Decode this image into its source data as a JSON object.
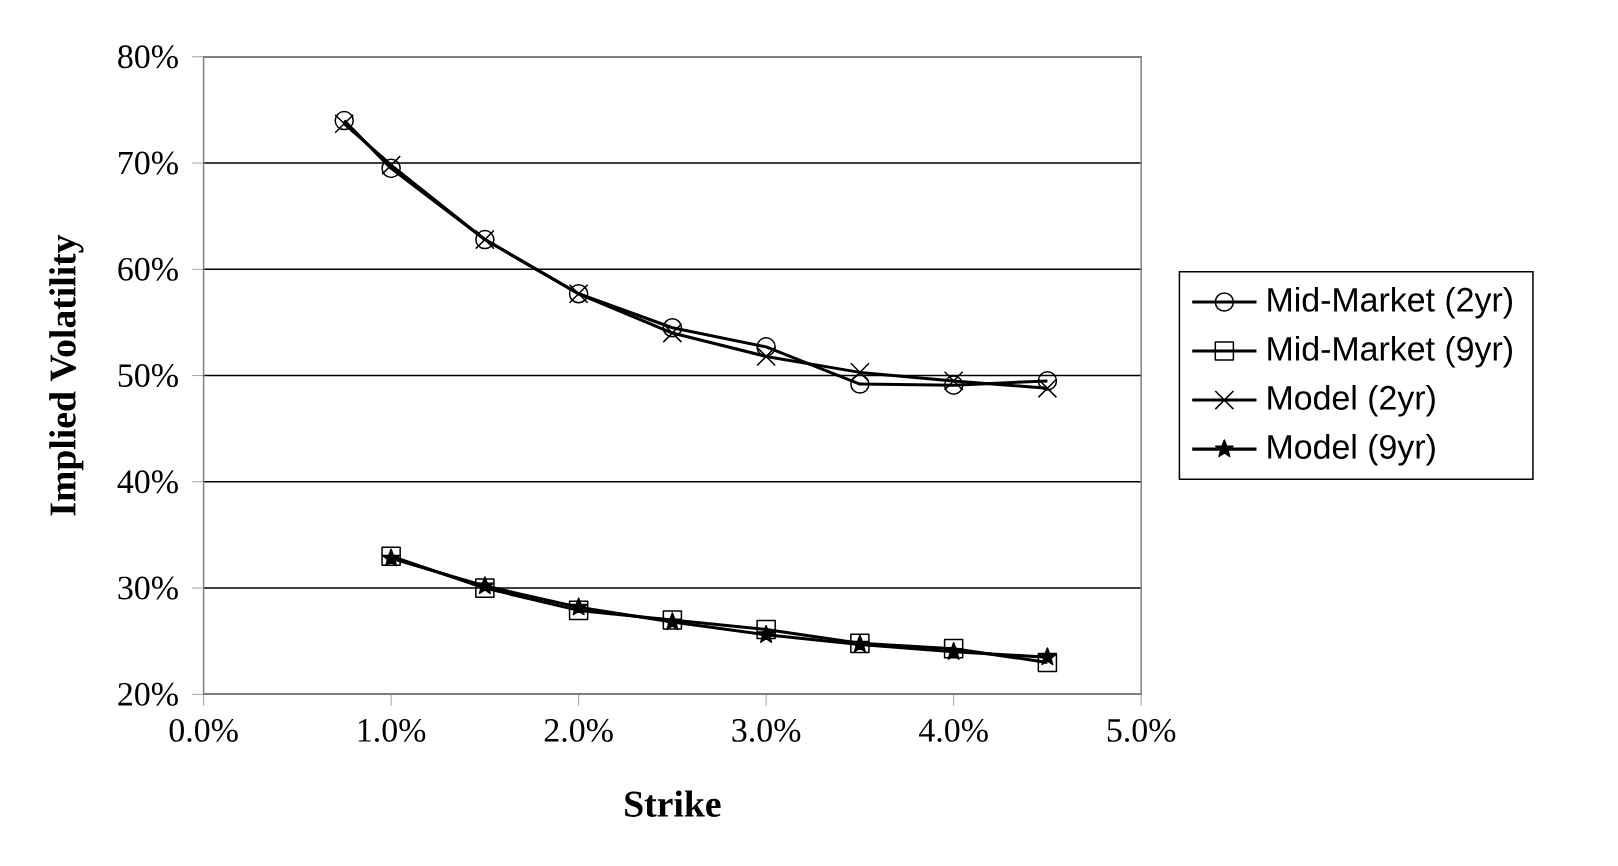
{
  "chart_data": {
    "type": "line",
    "xlabel": "Strike",
    "ylabel": "Implied Volatility",
    "xlim": [
      0,
      5
    ],
    "ylim": [
      20,
      80
    ],
    "xticks": [
      {
        "value": 0,
        "label": "0.0%"
      },
      {
        "value": 1,
        "label": "1.0%"
      },
      {
        "value": 2,
        "label": "2.0%"
      },
      {
        "value": 3,
        "label": "3.0%"
      },
      {
        "value": 4,
        "label": "4.0%"
      },
      {
        "value": 5,
        "label": "5.0%"
      }
    ],
    "yticks": [
      {
        "value": 20,
        "label": "20%"
      },
      {
        "value": 30,
        "label": "30%"
      },
      {
        "value": 40,
        "label": "40%"
      },
      {
        "value": 50,
        "label": "50%"
      },
      {
        "value": 60,
        "label": "60%"
      },
      {
        "value": 70,
        "label": "70%"
      },
      {
        "value": 80,
        "label": "80%"
      }
    ],
    "grid": "y",
    "legend": "right",
    "series": [
      {
        "name": "Mid-Market (2yr)",
        "color": "#000000",
        "marker": "circle",
        "x": [
          0.75,
          1,
          1.5,
          2,
          2.5,
          3,
          3.5,
          4,
          4.5
        ],
        "values": [
          74,
          69.5,
          62.8,
          57.7,
          54.5,
          52.7,
          49.2,
          49.1,
          49.5
        ]
      },
      {
        "name": "Mid-Market (9yr)",
        "color": "#000000",
        "marker": "square",
        "x": [
          1,
          1.5,
          2,
          2.5,
          3,
          3.5,
          4,
          4.5
        ],
        "values": [
          33,
          30,
          27.9,
          27,
          26.1,
          24.8,
          24.3,
          23
        ]
      },
      {
        "name": "Model (2yr)",
        "color": "#000000",
        "marker": "cross",
        "x": [
          0.75,
          1,
          1.5,
          2,
          2.5,
          3,
          3.5,
          4,
          4.5
        ],
        "values": [
          73.7,
          69.8,
          62.8,
          57.7,
          54,
          51.8,
          50.3,
          49.5,
          48.8
        ]
      },
      {
        "name": "Model (9yr)",
        "color": "#000000",
        "marker": "star",
        "x": [
          1,
          1.5,
          2,
          2.5,
          3,
          3.5,
          4,
          4.5
        ],
        "values": [
          32.8,
          30.2,
          28.2,
          26.8,
          25.6,
          24.7,
          24,
          23.5
        ]
      }
    ]
  }
}
